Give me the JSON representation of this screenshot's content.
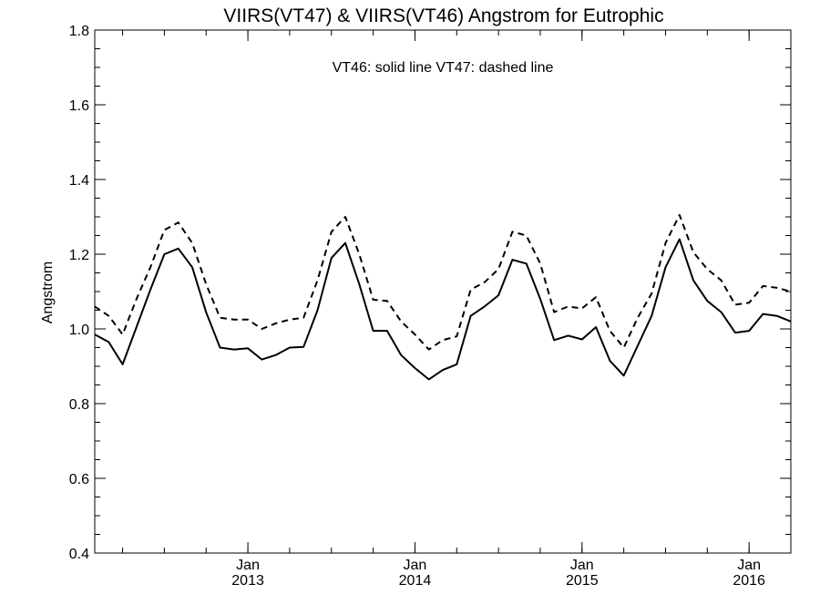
{
  "chart_data": {
    "type": "line",
    "title": "VIIRS(VT47) & VIIRS(VT46)  Angstrom for Eutrophic",
    "annotation": "VT46: solid line   VT47: dashed line",
    "ylabel": "Angstrom",
    "xlabel": "",
    "ylim": [
      0.4,
      1.8
    ],
    "xlim": [
      "2012-02",
      "2016-04"
    ],
    "y_ticks": [
      0.4,
      0.6,
      0.8,
      1.0,
      1.2,
      1.4,
      1.6,
      1.8
    ],
    "y_tick_labels": [
      "0.4",
      "0.6",
      "0.8",
      "1.0",
      "1.2",
      "1.4",
      "1.6",
      "1.8"
    ],
    "x_major_ticks": [
      {
        "date": "2013-01",
        "month": "Jan",
        "year": "2013"
      },
      {
        "date": "2014-01",
        "month": "Jan",
        "year": "2014"
      },
      {
        "date": "2015-01",
        "month": "Jan",
        "year": "2015"
      },
      {
        "date": "2016-01",
        "month": "Jan",
        "year": "2016"
      }
    ],
    "grid": false,
    "x": [
      "2012-02",
      "2012-03",
      "2012-04",
      "2012-05",
      "2012-06",
      "2012-07",
      "2012-08",
      "2012-09",
      "2012-10",
      "2012-11",
      "2012-12",
      "2013-01",
      "2013-02",
      "2013-03",
      "2013-04",
      "2013-05",
      "2013-06",
      "2013-07",
      "2013-08",
      "2013-09",
      "2013-10",
      "2013-11",
      "2013-12",
      "2014-01",
      "2014-02",
      "2014-03",
      "2014-04",
      "2014-05",
      "2014-06",
      "2014-07",
      "2014-08",
      "2014-09",
      "2014-10",
      "2014-11",
      "2014-12",
      "2015-01",
      "2015-02",
      "2015-03",
      "2015-04",
      "2015-05",
      "2015-06",
      "2015-07",
      "2015-08",
      "2015-09",
      "2015-10",
      "2015-11",
      "2015-12",
      "2016-01",
      "2016-02",
      "2016-03",
      "2016-04"
    ],
    "series": [
      {
        "name": "VT46",
        "line_style": "solid",
        "color": "#000000",
        "values": [
          0.985,
          0.965,
          0.905,
          1.005,
          1.105,
          1.2,
          1.215,
          1.165,
          1.045,
          0.95,
          0.945,
          0.948,
          0.918,
          0.93,
          0.95,
          0.952,
          1.05,
          1.19,
          1.23,
          1.12,
          0.995,
          0.995,
          0.93,
          0.895,
          0.865,
          0.89,
          0.905,
          1.035,
          1.06,
          1.09,
          1.185,
          1.175,
          1.08,
          0.97,
          0.982,
          0.972,
          1.005,
          0.915,
          0.875,
          0.955,
          1.035,
          1.165,
          1.24,
          1.13,
          1.075,
          1.045,
          0.99,
          0.995,
          1.04,
          1.035,
          1.02
        ]
      },
      {
        "name": "VT47",
        "line_style": "dashed",
        "color": "#000000",
        "values": [
          1.06,
          1.035,
          0.985,
          1.08,
          1.165,
          1.265,
          1.285,
          1.23,
          1.12,
          1.03,
          1.025,
          1.025,
          1.0,
          1.015,
          1.025,
          1.03,
          1.13,
          1.26,
          1.3,
          1.2,
          1.078,
          1.075,
          1.02,
          0.985,
          0.945,
          0.97,
          0.98,
          1.105,
          1.125,
          1.16,
          1.26,
          1.25,
          1.175,
          1.045,
          1.06,
          1.055,
          1.085,
          0.995,
          0.95,
          1.03,
          1.095,
          1.23,
          1.305,
          1.205,
          1.16,
          1.13,
          1.065,
          1.07,
          1.115,
          1.11,
          1.1
        ]
      }
    ]
  }
}
